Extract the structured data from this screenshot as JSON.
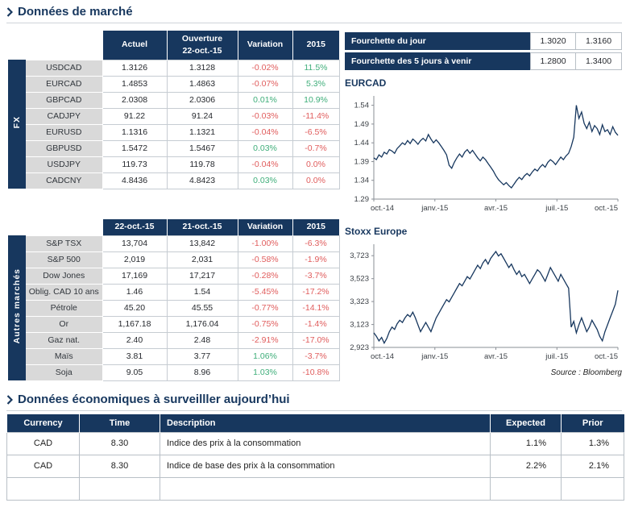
{
  "colors": {
    "navy": "#17375e",
    "negative": "#e05c5c",
    "positive": "#3fae7a",
    "label_bg": "#d9d9d9",
    "grid": "#c6ccd2"
  },
  "sections": {
    "market_title": "Données de marché",
    "econ_title": "Données économiques à surveilller aujourd’hui",
    "source_note": "Source : Bloomberg"
  },
  "fx_table": {
    "group_label": "FX",
    "headers": [
      [
        "Actuel"
      ],
      [
        "Ouverture",
        "22-oct.-15"
      ],
      [
        "Variation"
      ],
      [
        "2015"
      ]
    ],
    "rows": [
      {
        "label": "USDCAD",
        "values": [
          "1.3126",
          "1.3128",
          "-0.02%",
          "11.5%"
        ],
        "var_dir": "neg",
        "ytd_dir": "pos"
      },
      {
        "label": "EURCAD",
        "values": [
          "1.4853",
          "1.4863",
          "-0.07%",
          "5.3%"
        ],
        "var_dir": "neg",
        "ytd_dir": "pos"
      },
      {
        "label": "GBPCAD",
        "values": [
          "2.0308",
          "2.0306",
          "0.01%",
          "10.9%"
        ],
        "var_dir": "pos",
        "ytd_dir": "pos"
      },
      {
        "label": "CADJPY",
        "values": [
          "91.22",
          "91.24",
          "-0.03%",
          "-11.4%"
        ],
        "var_dir": "neg",
        "ytd_dir": "neg"
      },
      {
        "label": "EURUSD",
        "values": [
          "1.1316",
          "1.1321",
          "-0.04%",
          "-6.5%"
        ],
        "var_dir": "neg",
        "ytd_dir": "neg"
      },
      {
        "label": "GBPUSD",
        "values": [
          "1.5472",
          "1.5467",
          "0.03%",
          "-0.7%"
        ],
        "var_dir": "pos",
        "ytd_dir": "neg"
      },
      {
        "label": "USDJPY",
        "values": [
          "119.73",
          "119.78",
          "-0.04%",
          "0.0%"
        ],
        "var_dir": "neg",
        "ytd_dir": "neg"
      },
      {
        "label": "CADCNY",
        "values": [
          "4.8436",
          "4.8423",
          "0.03%",
          "0.0%"
        ],
        "var_dir": "pos",
        "ytd_dir": "neg"
      }
    ]
  },
  "markets_table": {
    "group_label": "Autres marchés",
    "headers": [
      [
        "22-oct.-15"
      ],
      [
        "21-oct.-15"
      ],
      [
        "Variation"
      ],
      [
        "2015"
      ]
    ],
    "rows": [
      {
        "label": "S&P TSX",
        "values": [
          "13,704",
          "13,842",
          "-1.00%",
          "-6.3%"
        ],
        "var_dir": "neg",
        "ytd_dir": "neg"
      },
      {
        "label": "S&P 500",
        "values": [
          "2,019",
          "2,031",
          "-0.58%",
          "-1.9%"
        ],
        "var_dir": "neg",
        "ytd_dir": "neg"
      },
      {
        "label": "Dow Jones",
        "values": [
          "17,169",
          "17,217",
          "-0.28%",
          "-3.7%"
        ],
        "var_dir": "neg",
        "ytd_dir": "neg"
      },
      {
        "label": "Oblig. CAD 10 ans",
        "values": [
          "1.46",
          "1.54",
          "-5.45%",
          "-17.2%"
        ],
        "var_dir": "neg",
        "ytd_dir": "neg"
      },
      {
        "label": "Pétrole",
        "values": [
          "45.20",
          "45.55",
          "-0.77%",
          "-14.1%"
        ],
        "var_dir": "neg",
        "ytd_dir": "neg"
      },
      {
        "label": "Or",
        "values": [
          "1,167.18",
          "1,176.04",
          "-0.75%",
          "-1.4%"
        ],
        "var_dir": "neg",
        "ytd_dir": "neg"
      },
      {
        "label": "Gaz nat.",
        "values": [
          "2.40",
          "2.48",
          "-2.91%",
          "-17.0%"
        ],
        "var_dir": "neg",
        "ytd_dir": "neg"
      },
      {
        "label": "Maïs",
        "values": [
          "3.81",
          "3.77",
          "1.06%",
          "-3.7%"
        ],
        "var_dir": "pos",
        "ytd_dir": "neg"
      },
      {
        "label": "Soja",
        "values": [
          "9.05",
          "8.96",
          "1.03%",
          "-10.8%"
        ],
        "var_dir": "pos",
        "ytd_dir": "neg"
      }
    ]
  },
  "ranges": {
    "rows": [
      {
        "label": "Fourchette du jour",
        "low": "1.3020",
        "high": "1.3160"
      },
      {
        "label": "Fourchette des 5 jours à venir",
        "low": "1.2800",
        "high": "1.3400"
      }
    ]
  },
  "econ_table": {
    "headers": [
      "Currency",
      "Time",
      "Description",
      "Expected",
      "Prior"
    ],
    "rows": [
      [
        "CAD",
        "8.30",
        "Indice des prix à la consommation",
        "1.1%",
        "1.3%"
      ],
      [
        "CAD",
        "8.30",
        "Indice de base des prix à la consommation",
        "2.2%",
        "2.1%"
      ],
      [
        "",
        "",
        "",
        "",
        ""
      ]
    ]
  },
  "chart_data": [
    {
      "type": "line",
      "title": "EURCAD",
      "x_ticklabels": [
        "oct.-14",
        "janv.-15",
        "avr.-15",
        "juil.-15",
        "oct.-15"
      ],
      "yticks": [
        1.29,
        1.34,
        1.39,
        1.44,
        1.49,
        1.54
      ],
      "ytick_labels": [
        "1.29",
        "1.34",
        "1.39",
        "1.44",
        "1.49",
        "1.54"
      ],
      "ylim": [
        1.29,
        1.565
      ],
      "line_color": "#17375e",
      "legend": "none",
      "grid": false,
      "series": [
        {
          "name": "EURCAD",
          "values": [
            1.4,
            1.395,
            1.408,
            1.402,
            1.415,
            1.41,
            1.422,
            1.418,
            1.412,
            1.425,
            1.432,
            1.44,
            1.435,
            1.446,
            1.438,
            1.45,
            1.444,
            1.436,
            1.446,
            1.452,
            1.445,
            1.462,
            1.45,
            1.44,
            1.448,
            1.44,
            1.43,
            1.42,
            1.408,
            1.38,
            1.372,
            1.388,
            1.4,
            1.41,
            1.402,
            1.415,
            1.422,
            1.412,
            1.42,
            1.41,
            1.4,
            1.392,
            1.402,
            1.395,
            1.385,
            1.375,
            1.365,
            1.352,
            1.342,
            1.335,
            1.328,
            1.334,
            1.326,
            1.32,
            1.33,
            1.34,
            1.348,
            1.342,
            1.352,
            1.358,
            1.352,
            1.362,
            1.37,
            1.365,
            1.375,
            1.382,
            1.375,
            1.388,
            1.395,
            1.39,
            1.382,
            1.392,
            1.402,
            1.395,
            1.405,
            1.412,
            1.43,
            1.455,
            1.54,
            1.505,
            1.522,
            1.492,
            1.478,
            1.495,
            1.47,
            1.486,
            1.478,
            1.462,
            1.488,
            1.47,
            1.475,
            1.462,
            1.483,
            1.468,
            1.46
          ]
        }
      ]
    },
    {
      "type": "line",
      "title": "Stoxx Europe",
      "x_ticklabels": [
        "oct.-14",
        "janv.-15",
        "avr.-15",
        "juil.-15",
        "oct.-15"
      ],
      "yticks": [
        2923,
        3123,
        3323,
        3523,
        3723
      ],
      "ytick_labels": [
        "2,923",
        "3,123",
        "3,323",
        "3,523",
        "3,723"
      ],
      "ylim": [
        2923,
        3823
      ],
      "line_color": "#17375e",
      "legend": "none",
      "grid": false,
      "series": [
        {
          "name": "Stoxx Europe",
          "values": [
            3050,
            3020,
            2980,
            3010,
            2960,
            3000,
            3060,
            3100,
            3080,
            3130,
            3160,
            3140,
            3180,
            3210,
            3190,
            3230,
            3180,
            3120,
            3060,
            3100,
            3140,
            3100,
            3060,
            3120,
            3180,
            3220,
            3260,
            3300,
            3340,
            3320,
            3360,
            3400,
            3440,
            3480,
            3460,
            3500,
            3540,
            3520,
            3560,
            3600,
            3640,
            3610,
            3660,
            3690,
            3650,
            3700,
            3730,
            3760,
            3720,
            3740,
            3700,
            3660,
            3620,
            3650,
            3600,
            3560,
            3590,
            3540,
            3560,
            3520,
            3480,
            3520,
            3560,
            3600,
            3580,
            3540,
            3500,
            3560,
            3620,
            3580,
            3540,
            3500,
            3560,
            3520,
            3480,
            3440,
            3100,
            3150,
            3050,
            3120,
            3180,
            3120,
            3060,
            3100,
            3160,
            3120,
            3080,
            3020,
            2980,
            3060,
            3120,
            3180,
            3240,
            3300,
            3420
          ]
        }
      ]
    }
  ]
}
